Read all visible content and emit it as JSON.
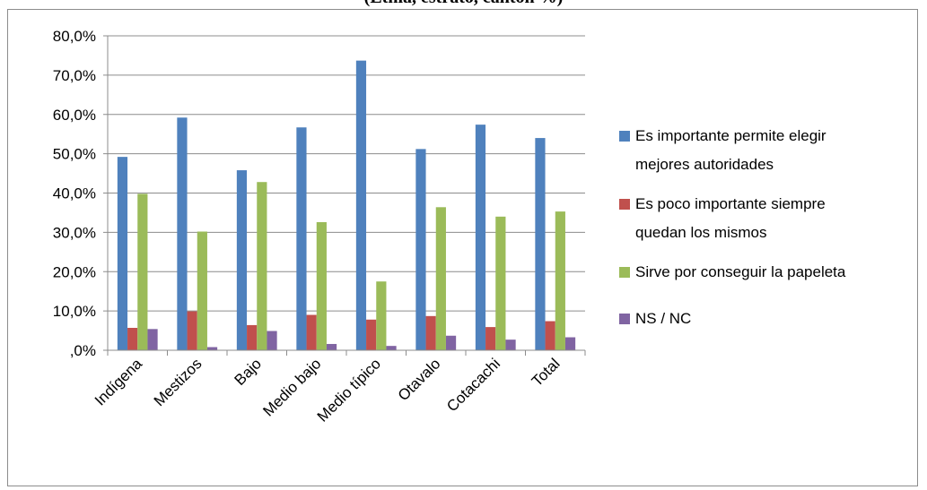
{
  "chart_data": {
    "type": "bar",
    "title": "(Etnia, estrato, cantón %)",
    "categories": [
      "Indígena",
      "Mestizos",
      "Bajo",
      "Medio bajo",
      "Medio típico",
      "Otavalo",
      "Cotacachi",
      "Total"
    ],
    "series": [
      {
        "name": "Es importante  permite elegir mejores autoridades",
        "color": "#4f81bd",
        "values": [
          49.2,
          59.2,
          45.8,
          56.7,
          73.7,
          51.2,
          57.4,
          54.0
        ]
      },
      {
        "name": "Es poco importante siempre quedan los mismos",
        "color": "#c0504d",
        "values": [
          5.7,
          9.9,
          6.4,
          9.0,
          7.8,
          8.7,
          5.9,
          7.4
        ]
      },
      {
        "name": "Sirve por conseguir la papeleta",
        "color": "#9bbb59",
        "values": [
          39.8,
          30.2,
          42.8,
          32.6,
          17.5,
          36.4,
          34.0,
          35.3
        ]
      },
      {
        "name": "NS / NC",
        "color": "#8064a2",
        "values": [
          5.4,
          0.8,
          4.9,
          1.6,
          1.1,
          3.7,
          2.7,
          3.3
        ]
      }
    ],
    "yticks": [
      "80,0%",
      "70,0%",
      "60,0%",
      "50,0%",
      "40,0%",
      "30,0%",
      "20,0%",
      "10,0%",
      ",0%"
    ],
    "ylim": [
      0,
      80
    ],
    "grid": true,
    "legend": "right"
  }
}
